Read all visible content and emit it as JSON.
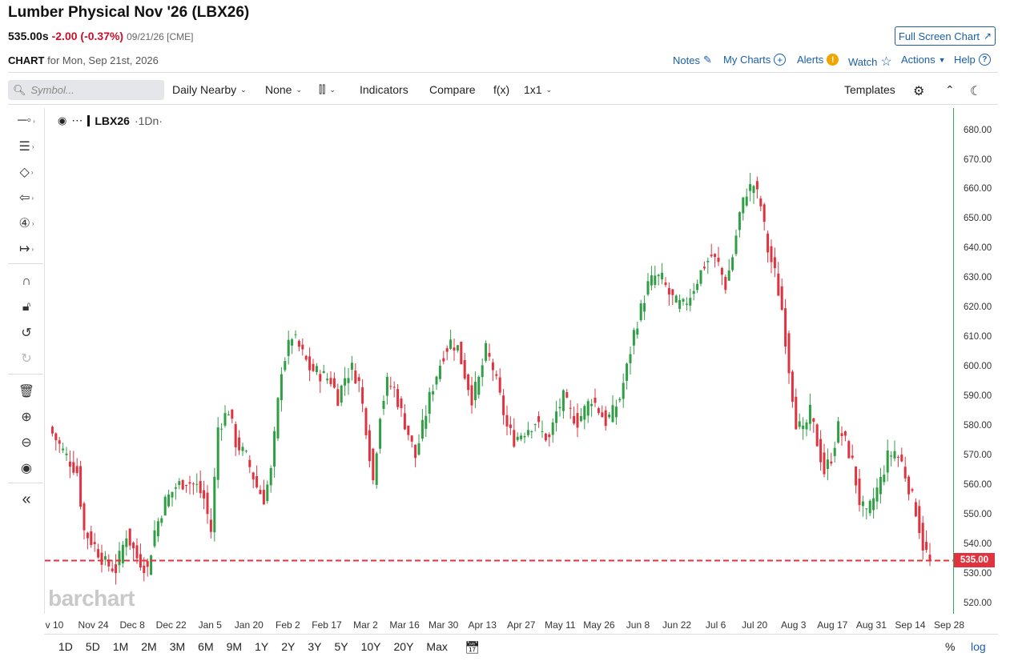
{
  "header": {
    "title": "Lumber Physical Nov '26 (LBX26)",
    "price": "535.00s",
    "change": "-2.00 (-0.37%)",
    "date_exchange": "09/21/26 [CME]",
    "fullscreen_label": "Full Screen Chart",
    "chart_label": "CHART",
    "chart_date": "for Mon, Sep 21st, 2026"
  },
  "links": {
    "notes": "Notes",
    "my_charts": "My Charts",
    "alerts": "Alerts",
    "watch": "Watch",
    "actions": "Actions",
    "help": "Help"
  },
  "toolbar": {
    "symbol_placeholder": "Symbol...",
    "daily": "Daily Nearby",
    "none": "None",
    "indicators": "Indicators",
    "compare": "Compare",
    "fx": "f(x)",
    "layout": "1x1",
    "templates": "Templates"
  },
  "legend": {
    "symbol": "LBX26",
    "interval": "·1Dn·"
  },
  "watermark": "barchart",
  "last_price_tag": "535.00",
  "periods": [
    "1D",
    "5D",
    "1M",
    "2M",
    "3M",
    "6M",
    "9M",
    "1Y",
    "2Y",
    "3Y",
    "5Y",
    "10Y",
    "20Y",
    "Max"
  ],
  "bottom": {
    "percent": "%",
    "log": "log"
  },
  "colors": {
    "up": "#2f9e44",
    "down": "#e0333f",
    "link": "#1a5fa8",
    "axis": "#3aa55d"
  },
  "chart_data": {
    "type": "candlestick",
    "y_ticks": [
      "680.00",
      "670.00",
      "660.00",
      "650.00",
      "640.00",
      "630.00",
      "620.00",
      "610.00",
      "600.00",
      "590.00",
      "580.00",
      "570.00",
      "560.00",
      "550.00",
      "540.00",
      "530.00",
      "520.00"
    ],
    "x_ticks": [
      "v 10",
      "Nov 24",
      "Dec 8",
      "Dec 22",
      "Jan 5",
      "Jan 20",
      "Feb 2",
      "Feb 17",
      "Mar 2",
      "Mar 16",
      "Mar 30",
      "Apr 13",
      "Apr 27",
      "May 11",
      "May 26",
      "Jun 8",
      "Jun 22",
      "Jul 6",
      "Jul 20",
      "Aug 3",
      "Aug 17",
      "Aug 31",
      "Sep 14",
      "Sep 28"
    ],
    "ylim": [
      517,
      688
    ],
    "last_price": 535.0,
    "close_path": [
      [
        0,
        580
      ],
      [
        4,
        572
      ],
      [
        8,
        565
      ],
      [
        10,
        545
      ],
      [
        13,
        540
      ],
      [
        16,
        534
      ],
      [
        19,
        532
      ],
      [
        22,
        544
      ],
      [
        25,
        536
      ],
      [
        28,
        532
      ],
      [
        30,
        545
      ],
      [
        33,
        555
      ],
      [
        36,
        560
      ],
      [
        39,
        562
      ],
      [
        42,
        560
      ],
      [
        44,
        556
      ],
      [
        46,
        545
      ],
      [
        48,
        580
      ],
      [
        51,
        586
      ],
      [
        53,
        575
      ],
      [
        56,
        570
      ],
      [
        59,
        560
      ],
      [
        61,
        556
      ],
      [
        63,
        565
      ],
      [
        66,
        600
      ],
      [
        69,
        611
      ],
      [
        71,
        607
      ],
      [
        74,
        600
      ],
      [
        77,
        598
      ],
      [
        80,
        596
      ],
      [
        82,
        590
      ],
      [
        84,
        597
      ],
      [
        86,
        600
      ],
      [
        88,
        595
      ],
      [
        90,
        580
      ],
      [
        92,
        562
      ],
      [
        94,
        585
      ],
      [
        96,
        595
      ],
      [
        98,
        593
      ],
      [
        100,
        585
      ],
      [
        102,
        578
      ],
      [
        104,
        570
      ],
      [
        106,
        580
      ],
      [
        108,
        590
      ],
      [
        110,
        598
      ],
      [
        112,
        605
      ],
      [
        114,
        609
      ],
      [
        116,
        607
      ],
      [
        118,
        598
      ],
      [
        120,
        590
      ],
      [
        122,
        596
      ],
      [
        124,
        606
      ],
      [
        126,
        600
      ],
      [
        128,
        590
      ],
      [
        130,
        580
      ],
      [
        132,
        576
      ],
      [
        134,
        578
      ],
      [
        136,
        580
      ],
      [
        138,
        582
      ],
      [
        140,
        578
      ],
      [
        142,
        576
      ],
      [
        144,
        585
      ],
      [
        146,
        590
      ],
      [
        148,
        585
      ],
      [
        150,
        582
      ],
      [
        152,
        586
      ],
      [
        154,
        590
      ],
      [
        156,
        586
      ],
      [
        158,
        582
      ],
      [
        160,
        585
      ],
      [
        162,
        590
      ],
      [
        164,
        600
      ],
      [
        166,
        612
      ],
      [
        168,
        620
      ],
      [
        170,
        628
      ],
      [
        172,
        631
      ],
      [
        174,
        630
      ],
      [
        176,
        625
      ],
      [
        178,
        622
      ],
      [
        180,
        621
      ],
      [
        182,
        625
      ],
      [
        184,
        630
      ],
      [
        186,
        635
      ],
      [
        188,
        638
      ],
      [
        190,
        635
      ],
      [
        192,
        628
      ],
      [
        194,
        638
      ],
      [
        196,
        652
      ],
      [
        198,
        660
      ],
      [
        200,
        662
      ],
      [
        202,
        655
      ],
      [
        204,
        640
      ],
      [
        206,
        632
      ],
      [
        208,
        620
      ],
      [
        210,
        600
      ],
      [
        212,
        582
      ],
      [
        214,
        578
      ],
      [
        216,
        585
      ],
      [
        218,
        575
      ],
      [
        220,
        565
      ],
      [
        222,
        570
      ],
      [
        224,
        580
      ],
      [
        226,
        575
      ],
      [
        228,
        568
      ],
      [
        230,
        555
      ],
      [
        232,
        550
      ],
      [
        234,
        556
      ],
      [
        236,
        562
      ],
      [
        238,
        570
      ],
      [
        240,
        572
      ],
      [
        242,
        568
      ],
      [
        244,
        560
      ],
      [
        246,
        552
      ],
      [
        248,
        540
      ],
      [
        250,
        535
      ]
    ]
  }
}
